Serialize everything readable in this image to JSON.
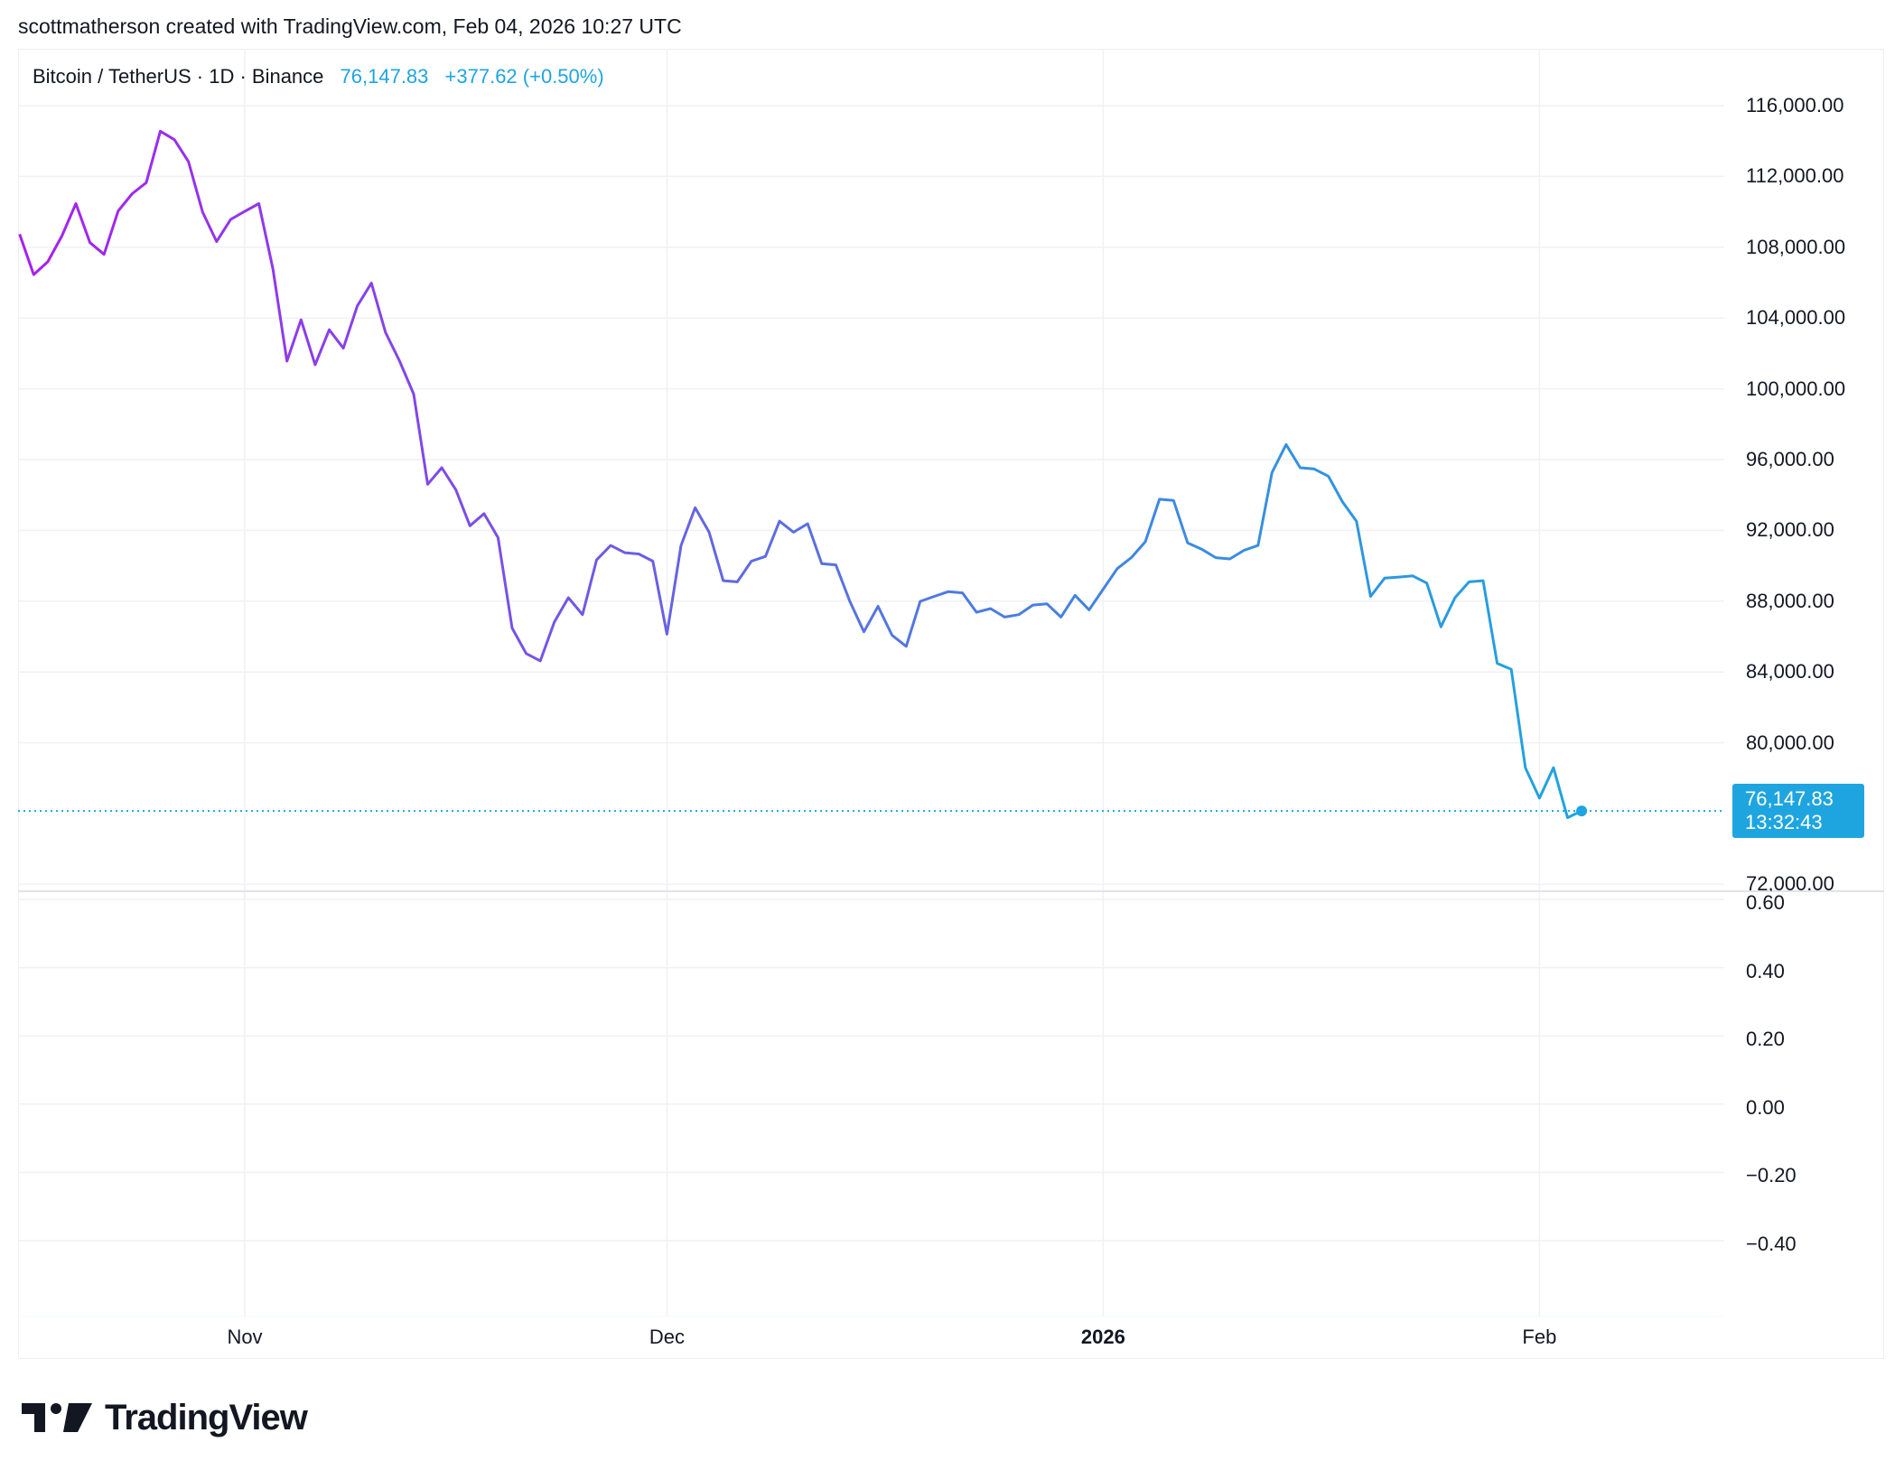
{
  "header": {
    "caption": "scottmatherson created with TradingView.com, Feb 04, 2026 10:27 UTC"
  },
  "legend": {
    "symbol": "Bitcoin / TetherUS · 1D · Binance",
    "price": "76,147.83",
    "change": "+377.62 (+0.50%)"
  },
  "price_label": {
    "price": "76,147.83",
    "countdown": "13:32:43"
  },
  "logo": {
    "text": "TradingView"
  },
  "colors": {
    "line_start": "#a81ff0",
    "line_mid": "#5b6fe2",
    "line_end": "#1ea5e0",
    "accent": "#1ea5e0",
    "grid": "#f0f1f4"
  },
  "chart_data": [
    {
      "type": "line",
      "title": "Bitcoin / TetherUS · 1D · Binance",
      "ylim": [
        72000,
        116000
      ],
      "grid": true,
      "last_value": 76147.83,
      "y_ticks": [
        "116,000.00",
        "112,000.00",
        "108,000.00",
        "104,000.00",
        "100,000.00",
        "96,000.00",
        "92,000.00",
        "88,000.00",
        "84,000.00",
        "80,000.00",
        "72,000.00"
      ],
      "y_tick_values": [
        116000,
        112000,
        108000,
        104000,
        100000,
        96000,
        92000,
        88000,
        84000,
        80000,
        72000
      ],
      "x_ticks": [
        {
          "label": "Nov",
          "date": "2025-11-01",
          "bold": false
        },
        {
          "label": "Dec",
          "date": "2025-12-01",
          "bold": false
        },
        {
          "label": "2026",
          "date": "2026-01-01",
          "bold": true
        },
        {
          "label": "Feb",
          "date": "2026-02-01",
          "bold": false
        }
      ],
      "x": [
        "2025-10-16",
        "2025-10-17",
        "2025-10-18",
        "2025-10-19",
        "2025-10-20",
        "2025-10-21",
        "2025-10-22",
        "2025-10-23",
        "2025-10-24",
        "2025-10-25",
        "2025-10-26",
        "2025-10-27",
        "2025-10-28",
        "2025-10-29",
        "2025-10-30",
        "2025-10-31",
        "2025-11-01",
        "2025-11-02",
        "2025-11-03",
        "2025-11-04",
        "2025-11-05",
        "2025-11-06",
        "2025-11-07",
        "2025-11-08",
        "2025-11-09",
        "2025-11-10",
        "2025-11-11",
        "2025-11-12",
        "2025-11-13",
        "2025-11-14",
        "2025-11-15",
        "2025-11-16",
        "2025-11-17",
        "2025-11-18",
        "2025-11-19",
        "2025-11-20",
        "2025-11-21",
        "2025-11-22",
        "2025-11-23",
        "2025-11-24",
        "2025-11-25",
        "2025-11-26",
        "2025-11-27",
        "2025-11-28",
        "2025-11-29",
        "2025-11-30",
        "2025-12-01",
        "2025-12-02",
        "2025-12-03",
        "2025-12-04",
        "2025-12-05",
        "2025-12-06",
        "2025-12-07",
        "2025-12-08",
        "2025-12-09",
        "2025-12-10",
        "2025-12-11",
        "2025-12-12",
        "2025-12-13",
        "2025-12-14",
        "2025-12-15",
        "2025-12-16",
        "2025-12-17",
        "2025-12-18",
        "2025-12-19",
        "2025-12-20",
        "2025-12-21",
        "2025-12-22",
        "2025-12-23",
        "2025-12-24",
        "2025-12-25",
        "2025-12-26",
        "2025-12-27",
        "2025-12-28",
        "2025-12-29",
        "2025-12-30",
        "2025-12-31",
        "2026-01-01",
        "2026-01-02",
        "2026-01-03",
        "2026-01-04",
        "2026-01-05",
        "2026-01-06",
        "2026-01-07",
        "2026-01-08",
        "2026-01-09",
        "2026-01-10",
        "2026-01-11",
        "2026-01-12",
        "2026-01-13",
        "2026-01-14",
        "2026-01-15",
        "2026-01-16",
        "2026-01-17",
        "2026-01-18",
        "2026-01-19",
        "2026-01-20",
        "2026-01-21",
        "2026-01-22",
        "2026-01-23",
        "2026-01-24",
        "2026-01-25",
        "2026-01-26",
        "2026-01-27",
        "2026-01-28",
        "2026-01-29",
        "2026-01-30",
        "2026-01-31",
        "2026-02-01",
        "2026-02-02",
        "2026-02-03",
        "2026-02-04"
      ],
      "y": [
        108737,
        106452,
        107180,
        108634,
        110462,
        108260,
        107595,
        110047,
        111023,
        111647,
        114556,
        114078,
        112831,
        109984,
        108322,
        109569,
        110026,
        110462,
        106763,
        101568,
        103896,
        101360,
        103335,
        102296,
        104685,
        105974,
        103189,
        101568,
        99698,
        94607,
        95542,
        94295,
        92259,
        92945,
        91594,
        86480,
        85040,
        84630,
        86830,
        88200,
        87240,
        90330,
        91150,
        90740,
        90670,
        90260,
        86140,
        91150,
        93280,
        91900,
        89160,
        89090,
        90260,
        90530,
        92520,
        91900,
        92380,
        90120,
        90050,
        87990,
        86270,
        87710,
        86070,
        85450,
        87990,
        88270,
        88540,
        88470,
        87370,
        87580,
        87100,
        87240,
        87780,
        87850,
        87100,
        88330,
        87510,
        88680,
        89840,
        90460,
        91360,
        93760,
        93690,
        91290,
        90940,
        90460,
        90390,
        90870,
        91150,
        95270,
        96850,
        95540,
        95470,
        95060,
        93620,
        92520,
        88270,
        89300,
        89360,
        89430,
        89020,
        86550,
        88200,
        89090,
        89160,
        84490,
        84150,
        78590,
        76870,
        78590,
        75770,
        76147.83
      ]
    },
    {
      "type": "line",
      "ylim": [
        -0.5,
        0.6
      ],
      "grid": true,
      "y_ticks": [
        "0.60",
        "0.40",
        "0.20",
        "0.00",
        "−0.20",
        "−0.40"
      ],
      "y_tick_values": [
        0.6,
        0.4,
        0.2,
        0.0,
        -0.2,
        -0.4
      ],
      "series": []
    }
  ]
}
